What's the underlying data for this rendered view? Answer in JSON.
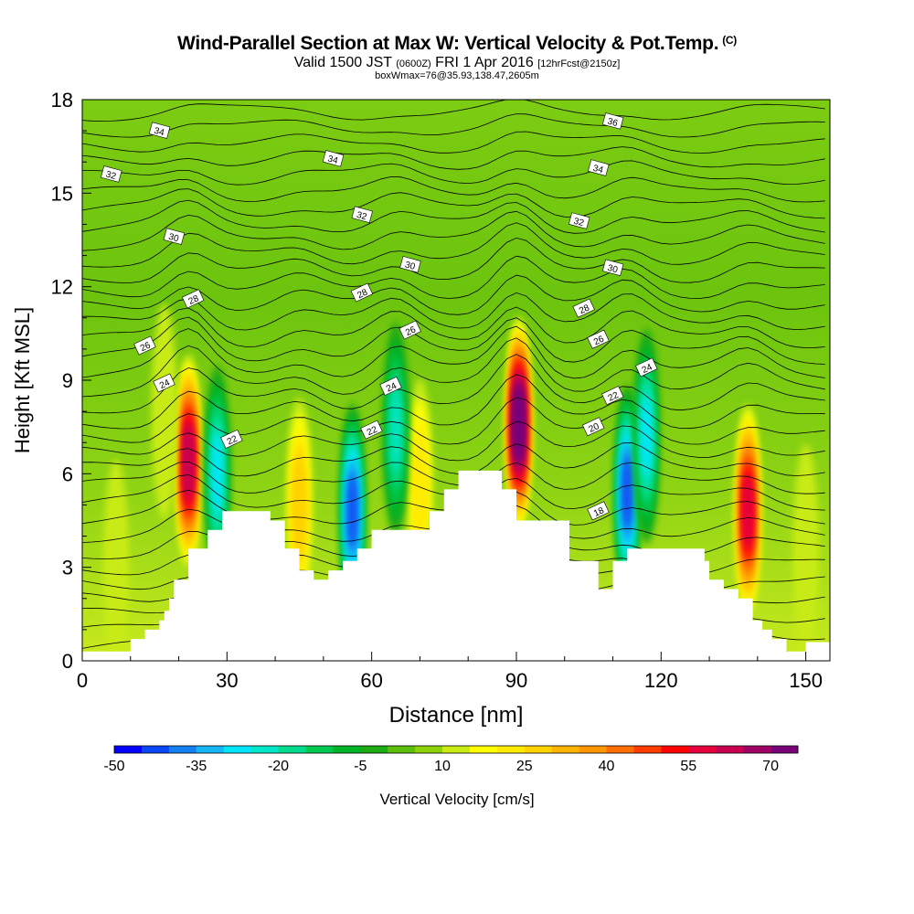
{
  "title": {
    "main": "Wind-Parallel Section at Max W: Vertical Velocity & Pot.Temp.",
    "main_suffix": "(C)",
    "valid_time": "Valid 1500 JST",
    "utc_time": "(0600Z)",
    "date": "FRI 1 Apr 2016",
    "forecast": "[12hrFcst@2150z]",
    "box_info": "boxWmax=76@35.93,138.47,2605m"
  },
  "chart_data": {
    "type": "heatmap",
    "xlabel": "Distance [nm]",
    "ylabel": "Height [Kft MSL]",
    "xlim": [
      0,
      155
    ],
    "ylim": [
      0,
      18
    ],
    "x_ticks": [
      "0",
      "30",
      "60",
      "90",
      "120",
      "150"
    ],
    "y_ticks": [
      "0",
      "3",
      "6",
      "9",
      "12",
      "15",
      "18"
    ],
    "colorbar": {
      "label": "Vertical Velocity [cm/s]",
      "tick_labels": [
        "-50",
        "-35",
        "-20",
        "-5",
        "10",
        "25",
        "40",
        "55",
        "70"
      ],
      "levels": [
        -50,
        -45,
        -40,
        -35,
        -30,
        -25,
        -20,
        -15,
        -10,
        -5,
        0,
        5,
        10,
        15,
        20,
        25,
        30,
        35,
        40,
        45,
        50,
        55,
        60,
        65,
        70,
        75
      ],
      "colors": [
        "#0000ff",
        "#0a46f5",
        "#147ff0",
        "#14b4f5",
        "#00e6ff",
        "#00e6c8",
        "#00dc8c",
        "#00c850",
        "#00b428",
        "#1eaa14",
        "#5abe0a",
        "#8cd20a",
        "#c8eb14",
        "#ffff00",
        "#ffeb00",
        "#ffd200",
        "#ffb400",
        "#ff9600",
        "#ff6e00",
        "#ff3c00",
        "#ff0000",
        "#e6003c",
        "#c80050",
        "#a00064",
        "#780078"
      ]
    },
    "terrain": [
      [
        0,
        0.3
      ],
      [
        10,
        0.3
      ],
      [
        10,
        0.7
      ],
      [
        13,
        0.7
      ],
      [
        13,
        1.0
      ],
      [
        16,
        1.0
      ],
      [
        16,
        1.3
      ],
      [
        17,
        1.3
      ],
      [
        17,
        1.6
      ],
      [
        18,
        1.6
      ],
      [
        18,
        2.0
      ],
      [
        19,
        2.0
      ],
      [
        19,
        2.6
      ],
      [
        22,
        2.6
      ],
      [
        22,
        3.6
      ],
      [
        26,
        3.6
      ],
      [
        26,
        4.2
      ],
      [
        29,
        4.2
      ],
      [
        29,
        4.8
      ],
      [
        39,
        4.8
      ],
      [
        39,
        4.5
      ],
      [
        42,
        4.5
      ],
      [
        42,
        3.6
      ],
      [
        45,
        3.6
      ],
      [
        45,
        2.9
      ],
      [
        48,
        2.9
      ],
      [
        48,
        2.6
      ],
      [
        51,
        2.6
      ],
      [
        51,
        2.9
      ],
      [
        54,
        2.9
      ],
      [
        54,
        3.2
      ],
      [
        57,
        3.2
      ],
      [
        57,
        3.6
      ],
      [
        60,
        3.6
      ],
      [
        60,
        4.2
      ],
      [
        72,
        4.2
      ],
      [
        72,
        4.8
      ],
      [
        75,
        4.8
      ],
      [
        75,
        5.5
      ],
      [
        78,
        5.5
      ],
      [
        78,
        6.1
      ],
      [
        87,
        6.1
      ],
      [
        87,
        5.5
      ],
      [
        90,
        5.5
      ],
      [
        90,
        4.5
      ],
      [
        101,
        4.5
      ],
      [
        101,
        3.2
      ],
      [
        107,
        3.2
      ],
      [
        107,
        2.3
      ],
      [
        110,
        2.3
      ],
      [
        110,
        3.2
      ],
      [
        113,
        3.2
      ],
      [
        113,
        3.6
      ],
      [
        129,
        3.6
      ],
      [
        129,
        3.2
      ],
      [
        130,
        3.2
      ],
      [
        130,
        2.6
      ],
      [
        133,
        2.6
      ],
      [
        133,
        2.3
      ],
      [
        136,
        2.3
      ],
      [
        136,
        2.0
      ],
      [
        139,
        2.0
      ],
      [
        139,
        1.3
      ],
      [
        141,
        1.3
      ],
      [
        141,
        1.0
      ],
      [
        143,
        1.0
      ],
      [
        143,
        0.7
      ],
      [
        146,
        0.7
      ],
      [
        146,
        0.3
      ],
      [
        150,
        0.3
      ],
      [
        150,
        0.6
      ],
      [
        155,
        0.6
      ]
    ],
    "updrafts": [
      {
        "x": 22,
        "y": 6.4,
        "w_max": 62
      },
      {
        "x": 45,
        "y": 5.0,
        "w_max": 28
      },
      {
        "x": 70,
        "y": 5.6,
        "w_max": 22
      },
      {
        "x": 90.5,
        "y": 7.6,
        "w_max": 76
      },
      {
        "x": 138,
        "y": 4.8,
        "w_max": 58
      },
      {
        "x": 17,
        "y": 8.0,
        "w_max": 12
      },
      {
        "x": 7,
        "y": 3.0,
        "w_max": 14
      },
      {
        "x": 150,
        "y": 3.5,
        "w_max": 13
      }
    ],
    "downdrafts": [
      {
        "x": 28,
        "y": 6.0,
        "w_min": -30
      },
      {
        "x": 56,
        "y": 4.8,
        "w_min": -42
      },
      {
        "x": 65,
        "y": 7.4,
        "w_min": -25
      },
      {
        "x": 113,
        "y": 5.4,
        "w_min": -45
      },
      {
        "x": 117,
        "y": 7.2,
        "w_min": -28
      }
    ],
    "theta_labels": [
      {
        "text": "34",
        "x": 16,
        "y": 17.0
      },
      {
        "text": "32",
        "x": 6,
        "y": 15.6
      },
      {
        "text": "34",
        "x": 52,
        "y": 16.1
      },
      {
        "text": "36",
        "x": 110,
        "y": 17.3
      },
      {
        "text": "34",
        "x": 107,
        "y": 15.8
      },
      {
        "text": "32",
        "x": 58,
        "y": 14.3
      },
      {
        "text": "32",
        "x": 103,
        "y": 14.1
      },
      {
        "text": "30",
        "x": 19,
        "y": 13.6
      },
      {
        "text": "30",
        "x": 68,
        "y": 12.7
      },
      {
        "text": "30",
        "x": 110,
        "y": 12.6
      },
      {
        "text": "28",
        "x": 23,
        "y": 11.6
      },
      {
        "text": "28",
        "x": 58,
        "y": 11.8
      },
      {
        "text": "28",
        "x": 104,
        "y": 11.3
      },
      {
        "text": "26",
        "x": 13,
        "y": 10.1
      },
      {
        "text": "26",
        "x": 68,
        "y": 10.6
      },
      {
        "text": "26",
        "x": 107,
        "y": 10.3
      },
      {
        "text": "24",
        "x": 17,
        "y": 8.9
      },
      {
        "text": "24",
        "x": 64,
        "y": 8.8
      },
      {
        "text": "24",
        "x": 117,
        "y": 9.4
      },
      {
        "text": "22",
        "x": 31,
        "y": 7.1
      },
      {
        "text": "22",
        "x": 60,
        "y": 7.4
      },
      {
        "text": "22",
        "x": 110,
        "y": 8.5
      },
      {
        "text": "20",
        "x": 106,
        "y": 7.5
      },
      {
        "text": "18",
        "x": 107,
        "y": 4.8
      }
    ]
  }
}
